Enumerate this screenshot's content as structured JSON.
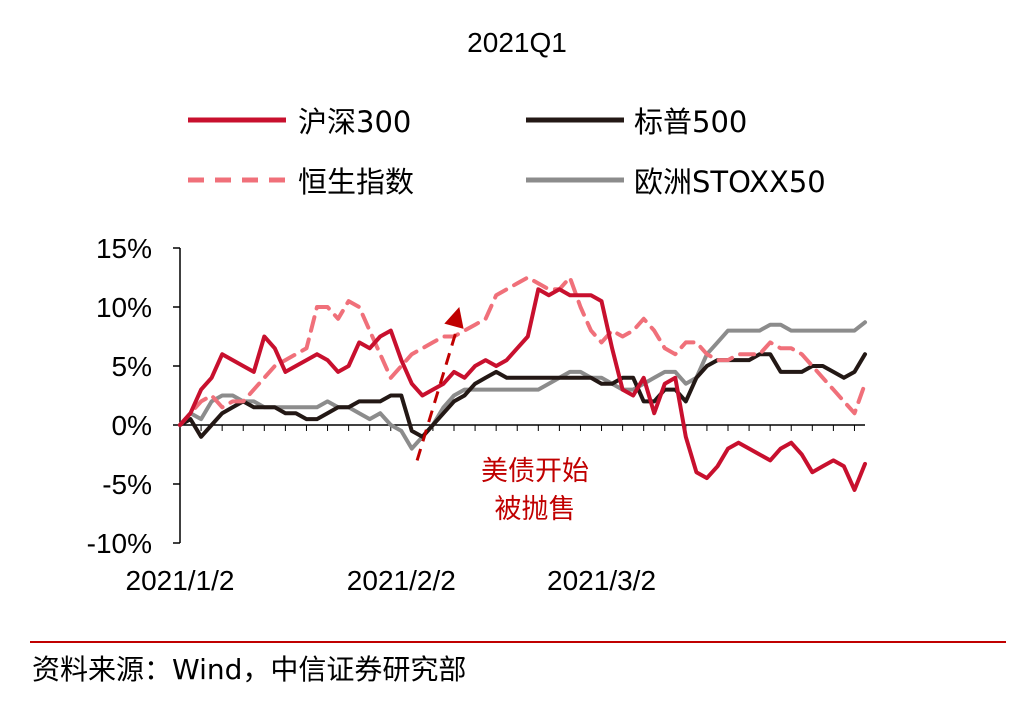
{
  "chart_data": {
    "type": "line",
    "title": "2021Q1",
    "xlabel": "",
    "ylabel": "",
    "ylim": [
      -10,
      15
    ],
    "yticks": [
      "15%",
      "10%",
      "5%",
      "0%",
      "-5%",
      "-10%"
    ],
    "xticks": [
      {
        "index": 0,
        "label": "2021/1/2"
      },
      {
        "index": 21,
        "label": "2021/2/2"
      },
      {
        "index": 40,
        "label": "2021/3/2"
      }
    ],
    "legend": "top",
    "series": [
      {
        "name": "沪深300",
        "color": "#c8102e",
        "dash": "solid",
        "values": [
          0,
          1,
          3,
          4,
          6,
          5.5,
          5,
          4.5,
          7.5,
          6.5,
          4.5,
          5,
          5.5,
          6,
          5.5,
          4.5,
          5,
          7,
          6.5,
          7.5,
          8,
          5.5,
          3.5,
          2.5,
          3,
          3.5,
          4.5,
          4,
          5,
          5.5,
          5,
          5.5,
          6.5,
          7.5,
          11.5,
          11,
          11.5,
          11,
          11,
          11,
          10.5,
          6.5,
          3,
          2.5,
          4,
          1,
          3.5,
          4,
          -1,
          -4,
          -4.5,
          -3.5,
          -2,
          -1.5,
          -2,
          -2.5,
          -3,
          -2,
          -1.5,
          -2.5,
          -4,
          -3.5,
          -3,
          -3.5,
          -5.5,
          -3.3
        ]
      },
      {
        "name": "标普500",
        "color": "#231815",
        "dash": "solid",
        "values": [
          0,
          0.5,
          -1,
          0,
          1,
          1.5,
          2,
          1.5,
          1.5,
          1.5,
          1,
          1,
          0.5,
          0.5,
          1,
          1.5,
          1.5,
          2,
          2,
          2,
          2.5,
          2.5,
          -0.5,
          -1,
          0,
          1,
          2,
          2.5,
          3.5,
          4,
          4.5,
          4,
          4,
          4,
          4,
          4,
          4,
          4,
          4,
          4,
          3.5,
          3.5,
          4,
          4,
          2,
          2,
          3,
          3,
          2,
          4,
          5,
          5.5,
          5.5,
          5.5,
          5.5,
          6,
          6,
          4.5,
          4.5,
          4.5,
          5,
          5,
          4.5,
          4,
          4.5,
          6
        ]
      },
      {
        "name": "恒生指数",
        "color": "#f0707a",
        "dash": "dashed",
        "values": [
          0,
          1,
          2,
          2.5,
          1.5,
          2,
          2,
          3,
          4,
          5,
          5.5,
          6,
          6.5,
          10,
          10,
          9,
          10.5,
          10,
          8,
          6,
          4,
          5,
          6,
          6.5,
          7,
          7.5,
          7.5,
          8,
          8.5,
          9,
          11,
          11.5,
          12,
          12.5,
          12,
          11.5,
          11.5,
          12.5,
          10,
          8,
          7,
          8,
          7.5,
          8,
          9,
          8,
          6.5,
          6,
          7,
          7,
          6,
          5.5,
          5.5,
          6,
          6,
          6,
          7,
          6.5,
          6.5,
          6,
          5,
          4,
          3,
          2,
          1,
          3.5
        ]
      },
      {
        "name": "欧洲STOXX50",
        "color": "#8c8c8c",
        "dash": "solid",
        "values": [
          0,
          1,
          0.5,
          2,
          2.5,
          2.5,
          2,
          2,
          1.5,
          1.5,
          1.5,
          1.5,
          1.5,
          1.5,
          2,
          1.5,
          1.5,
          1,
          0.5,
          1,
          0,
          -0.5,
          -2,
          -1,
          0,
          1.5,
          2.5,
          3,
          3,
          3,
          3,
          3,
          3,
          3,
          3,
          3.5,
          4,
          4.5,
          4.5,
          4,
          4,
          3.5,
          3,
          3,
          3.5,
          4,
          4.5,
          4.5,
          3.5,
          4,
          6,
          7,
          8,
          8,
          8,
          8,
          8.5,
          8.5,
          8,
          8,
          8,
          8,
          8,
          8,
          8,
          8.7
        ]
      }
    ],
    "annotation": {
      "lines": [
        "美债开始",
        "被抛售"
      ],
      "color": "#c00000",
      "arrow_from": [
        22.5,
        -3
      ],
      "arrow_to": [
        26.5,
        10
      ]
    }
  },
  "footer": {
    "source": "资料来源：Wind，中信证券研究部"
  }
}
